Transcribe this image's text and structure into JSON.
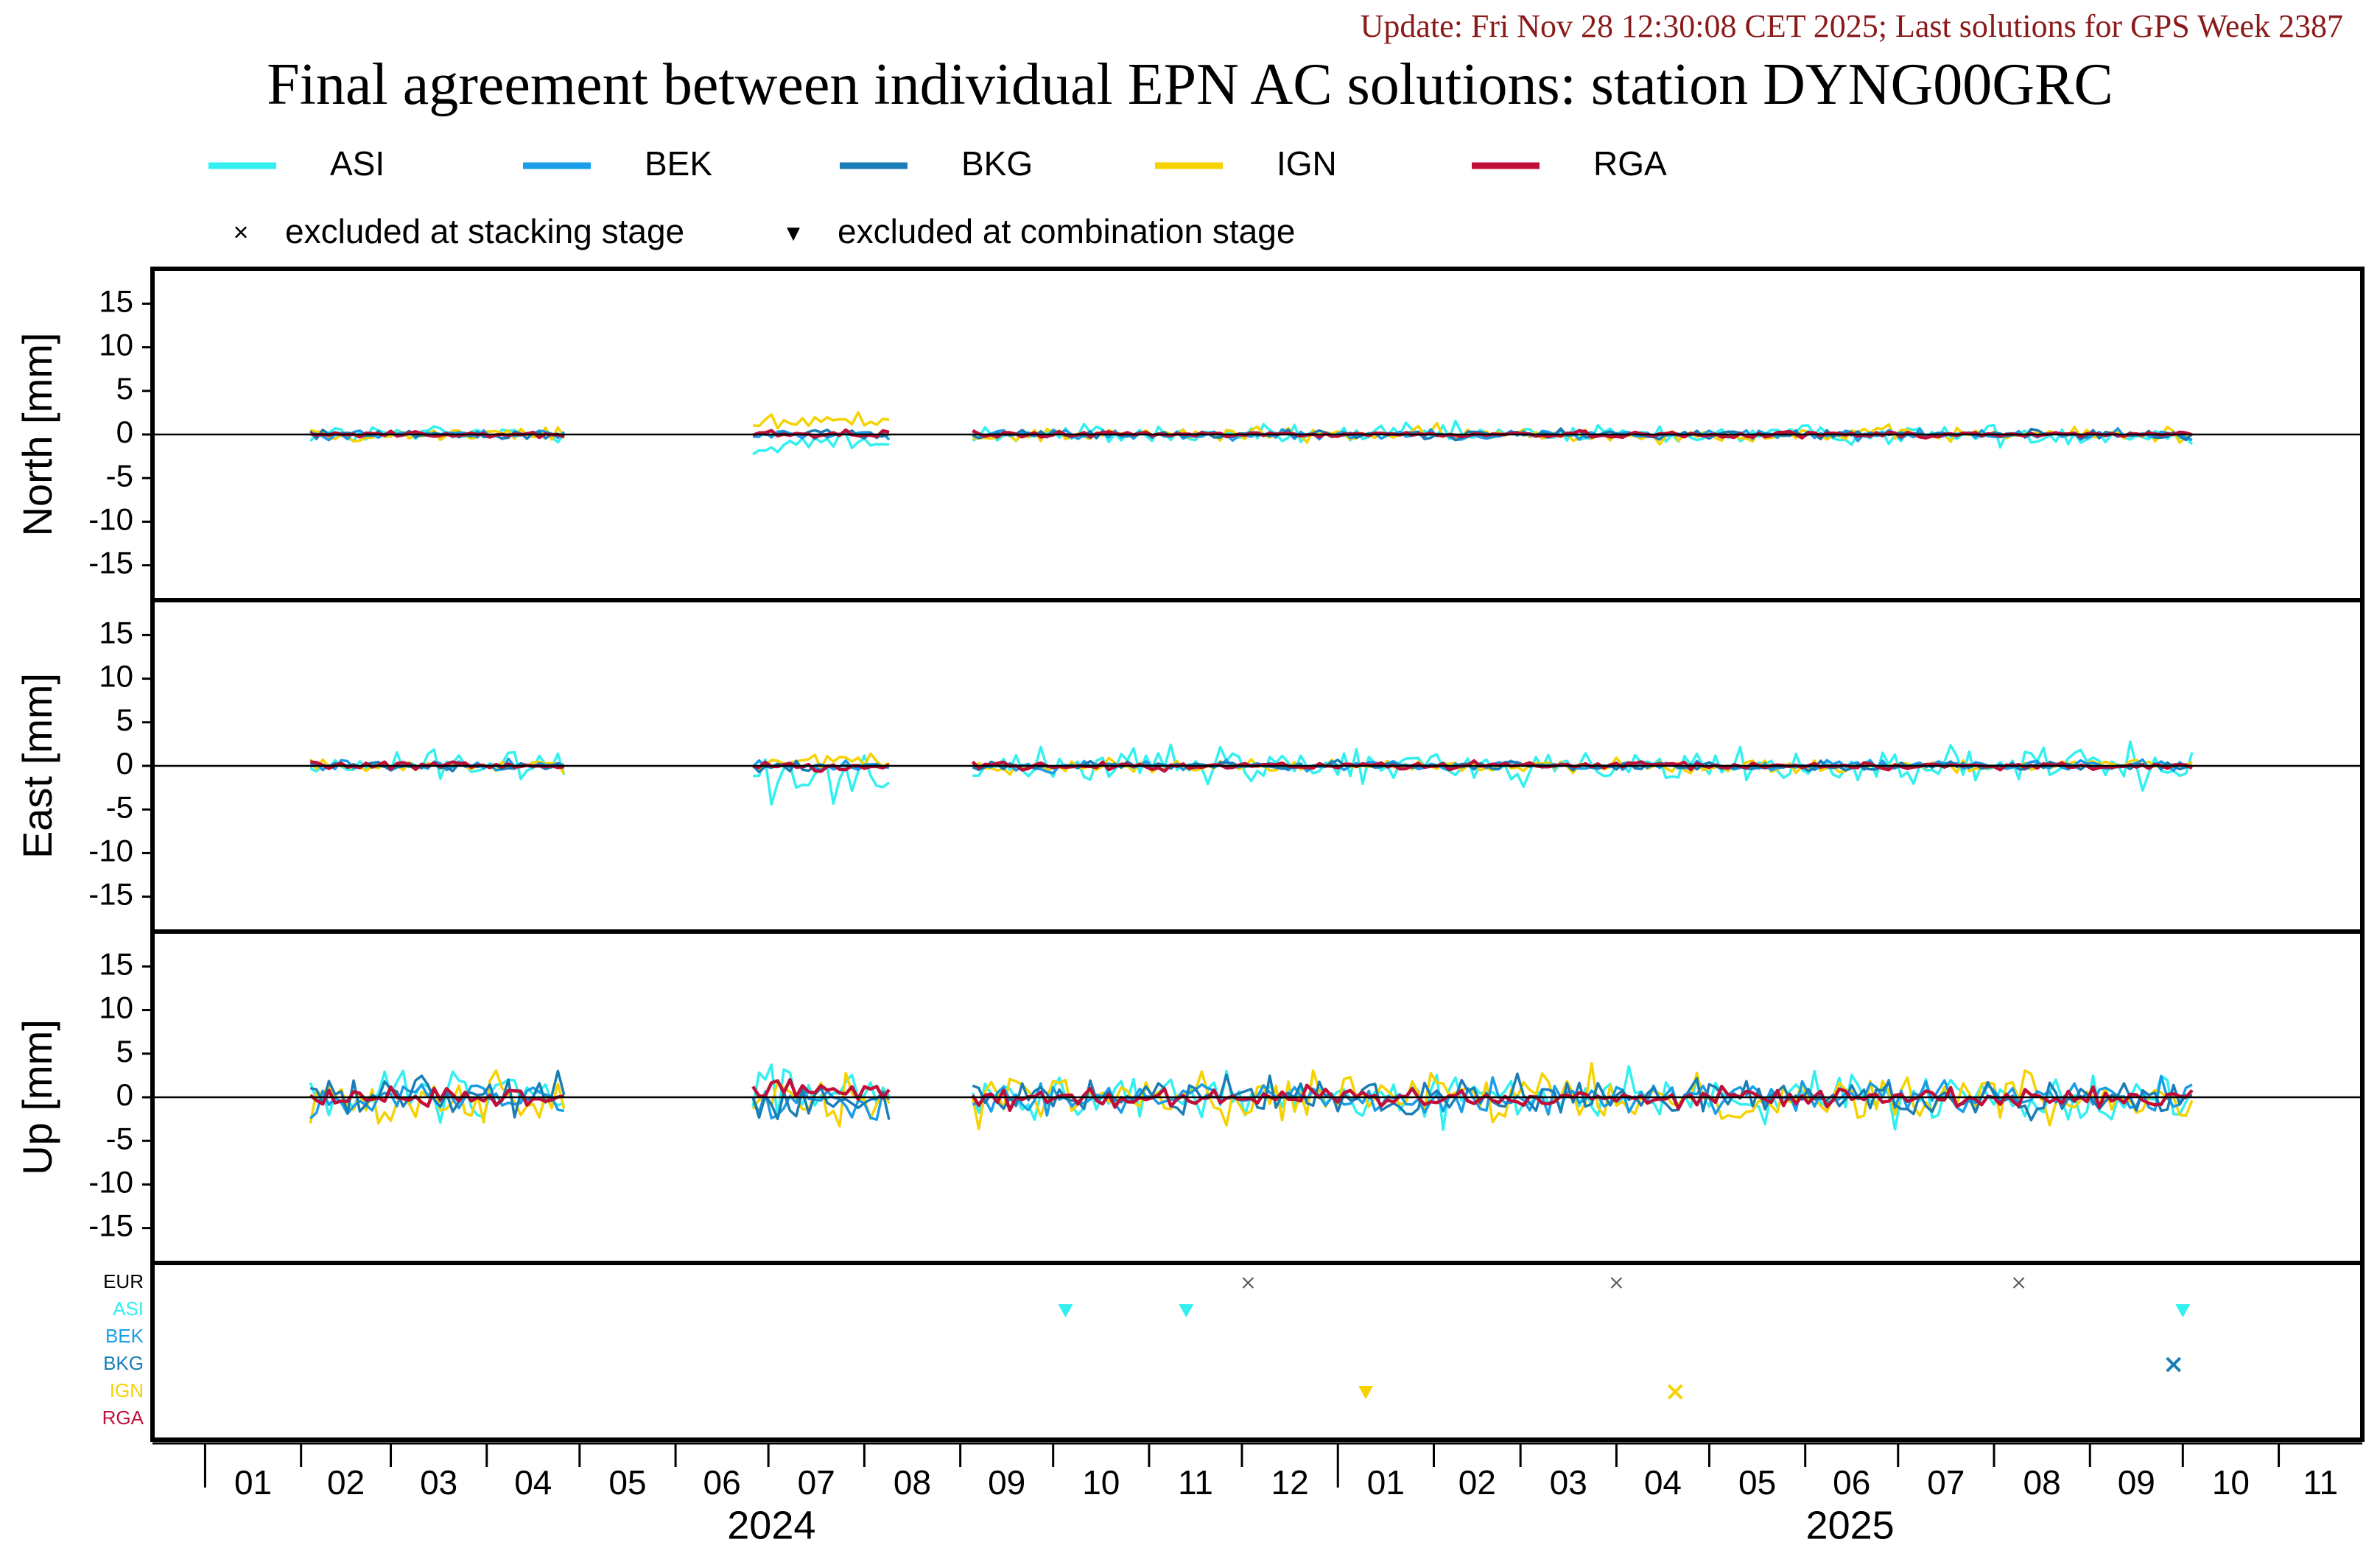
{
  "update_text": "Update: Fri Nov 28 12:30:08 CET 2025; Last solutions for GPS Week 2387",
  "title": "Final agreement between individual EPN AC solutions: station DYNG00GRC",
  "colors": {
    "ASI": "#33f0f0",
    "BEK": "#1a9de8",
    "BKG": "#1a7db5",
    "IGN": "#f5d200",
    "RGA": "#c0103a",
    "EUR": "#000000"
  },
  "legend": {
    "series": [
      "ASI",
      "BEK",
      "BKG",
      "IGN",
      "RGA"
    ],
    "markers": [
      {
        "symbol": "×",
        "label": "excluded at stacking stage"
      },
      {
        "symbol": "▾",
        "label": "excluded at combination stage"
      }
    ]
  },
  "chart_data": {
    "type": "line",
    "x_axis": {
      "range": [
        "2023-12-15",
        "2025-11-28"
      ],
      "month_labels": [
        "01",
        "02",
        "03",
        "04",
        "05",
        "06",
        "07",
        "08",
        "09",
        "10",
        "11",
        "12",
        "01",
        "02",
        "03",
        "04",
        "05",
        "06",
        "07",
        "08",
        "09",
        "10",
        "11"
      ],
      "year_labels": [
        "2024",
        "2025"
      ]
    },
    "panels": [
      {
        "key": "north",
        "ylabel": "North [mm]",
        "ylim": [
          -19,
          19
        ],
        "yticks": [
          15,
          10,
          5,
          0,
          -5,
          -10,
          -15
        ],
        "amplitudes": {
          "ASI": 0.8,
          "BEK": 0.4,
          "BKG": 0.35,
          "IGN": 0.6,
          "RGA": 0.25
        },
        "offsets_segment2": {
          "ASI": -1.0,
          "BEK": 0,
          "BKG": 0,
          "IGN": 1.5,
          "RGA": 0
        }
      },
      {
        "key": "east",
        "ylabel": "East [mm]",
        "ylim": [
          -19,
          19
        ],
        "yticks": [
          15,
          10,
          5,
          0,
          -5,
          -10,
          -15
        ],
        "amplitudes": {
          "ASI": 1.4,
          "BEK": 0.4,
          "BKG": 0.35,
          "IGN": 0.5,
          "RGA": 0.3
        },
        "offsets_segment2": {
          "ASI": -1.0,
          "BEK": 0,
          "BKG": 0,
          "IGN": 0.5,
          "RGA": 0
        }
      },
      {
        "key": "up",
        "ylabel": "Up [mm]",
        "ylim": [
          -19,
          19
        ],
        "yticks": [
          15,
          10,
          5,
          0,
          -5,
          -10,
          -15
        ],
        "amplitudes": {
          "ASI": 1.8,
          "BEK": 1.3,
          "BKG": 1.6,
          "IGN": 1.9,
          "RGA": 0.8
        },
        "offsets_segment2": {
          "ASI": 1.0,
          "BEK": 0,
          "BKG": -1.0,
          "IGN": 0,
          "RGA": 1.0
        }
      }
    ],
    "data_segments": [
      [
        "2024-02-04",
        "2024-04-27"
      ],
      [
        "2024-06-26",
        "2024-08-10"
      ],
      [
        "2024-09-05",
        "2025-10-05"
      ]
    ],
    "exclusion_rows": [
      "EUR",
      "ASI",
      "BEK",
      "BKG",
      "IGN",
      "RGA"
    ],
    "exclusions": [
      {
        "row": "EUR",
        "date": "2024-12-03",
        "type": "stacking"
      },
      {
        "row": "EUR",
        "date": "2025-04-01",
        "type": "stacking"
      },
      {
        "row": "EUR",
        "date": "2025-08-09",
        "type": "stacking"
      },
      {
        "row": "ASI",
        "date": "2024-10-05",
        "type": "combination"
      },
      {
        "row": "ASI",
        "date": "2024-11-13",
        "type": "combination"
      },
      {
        "row": "ASI",
        "date": "2025-10-01",
        "type": "combination"
      },
      {
        "row": "BKG",
        "date": "2025-09-28",
        "type": "stacking"
      },
      {
        "row": "IGN",
        "date": "2025-01-10",
        "type": "combination"
      },
      {
        "row": "IGN",
        "date": "2025-04-20",
        "type": "stacking"
      }
    ]
  }
}
